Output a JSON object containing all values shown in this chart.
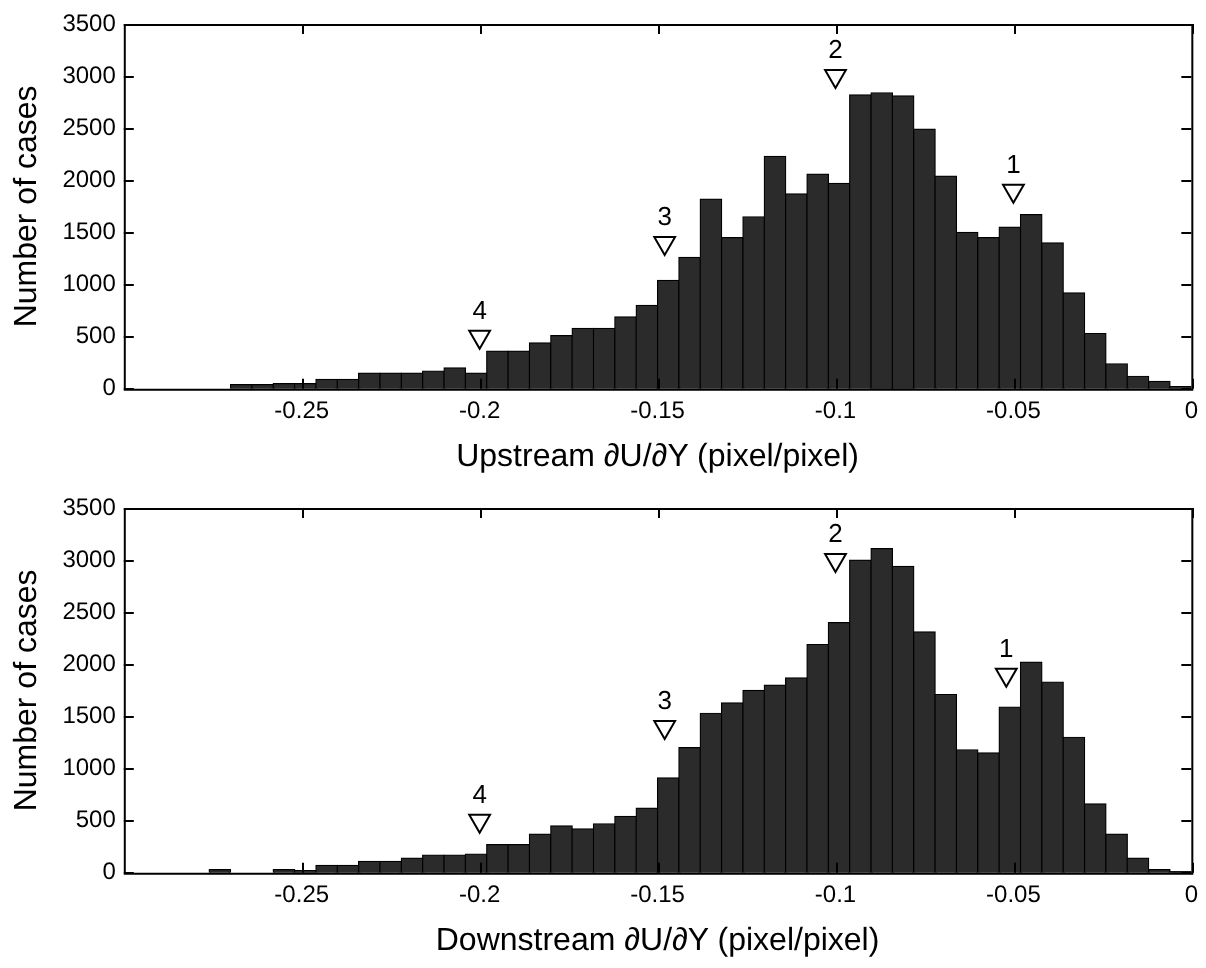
{
  "chart_data": [
    {
      "type": "histogram",
      "xlabel": "Upstream ∂U/∂Y (pixel/pixel)",
      "ylabel": "Number of cases",
      "color": "#2b2b2b",
      "bins": [
        -0.294,
        -0.288,
        -0.282,
        -0.276,
        -0.27,
        -0.264,
        -0.258,
        -0.252,
        -0.246,
        -0.24,
        -0.234,
        -0.228,
        -0.222,
        -0.216,
        -0.21,
        -0.204,
        -0.198,
        -0.192,
        -0.186,
        -0.18,
        -0.174,
        -0.168,
        -0.162,
        -0.156,
        -0.15,
        -0.144,
        -0.138,
        -0.132,
        -0.126,
        -0.12,
        -0.114,
        -0.108,
        -0.102,
        -0.096,
        -0.09,
        -0.084,
        -0.078,
        -0.072,
        -0.066,
        -0.06,
        -0.054,
        -0.048,
        -0.042,
        -0.036,
        -0.03,
        -0.024,
        -0.018,
        -0.012,
        -0.006,
        0
      ],
      "values": [
        0,
        0,
        0,
        0,
        40,
        40,
        50,
        50,
        90,
        90,
        150,
        150,
        150,
        170,
        200,
        150,
        360,
        360,
        440,
        510,
        580,
        580,
        690,
        800,
        1040,
        1260,
        1820,
        1450,
        1650,
        2230,
        1870,
        2060,
        1970,
        2820,
        2840,
        2810,
        2490,
        2040,
        1500,
        1450,
        1550,
        1670,
        1400,
        920,
        530,
        240,
        120,
        70,
        20
      ],
      "xlim": [
        -0.3,
        0
      ],
      "xticks": [
        -0.25,
        -0.2,
        -0.15,
        -0.1,
        -0.05,
        0
      ],
      "ylim": [
        0,
        3500
      ],
      "yticks": [
        0,
        500,
        1000,
        1500,
        2000,
        2500,
        3000,
        3500
      ],
      "grid": false,
      "series": [
        {
          "type": "scatter",
          "name": "1",
          "x": [
            -0.05
          ],
          "values": [
            1900
          ],
          "color": "#ffffff",
          "marker": "triangle"
        },
        {
          "type": "scatter",
          "name": "2",
          "x": [
            -0.1
          ],
          "values": [
            3000
          ],
          "color": "#ffffff",
          "marker": "triangle"
        },
        {
          "type": "scatter",
          "name": "3",
          "x": [
            -0.148
          ],
          "values": [
            1400
          ],
          "color": "#ffffff",
          "marker": "triangle"
        },
        {
          "type": "scatter",
          "name": "4",
          "x": [
            -0.2
          ],
          "values": [
            500
          ],
          "color": "#ffffff",
          "marker": "triangle"
        }
      ]
    },
    {
      "type": "histogram",
      "xlabel": "Downstream ∂U/∂Y (pixel/pixel)",
      "ylabel": "Number of cases",
      "color": "#2b2b2b",
      "bins": [
        -0.294,
        -0.288,
        -0.282,
        -0.276,
        -0.27,
        -0.264,
        -0.258,
        -0.252,
        -0.246,
        -0.24,
        -0.234,
        -0.228,
        -0.222,
        -0.216,
        -0.21,
        -0.204,
        -0.198,
        -0.192,
        -0.186,
        -0.18,
        -0.174,
        -0.168,
        -0.162,
        -0.156,
        -0.15,
        -0.144,
        -0.138,
        -0.132,
        -0.126,
        -0.12,
        -0.114,
        -0.108,
        -0.102,
        -0.096,
        -0.09,
        -0.084,
        -0.078,
        -0.072,
        -0.066,
        -0.06,
        -0.054,
        -0.048,
        -0.042,
        -0.036,
        -0.03,
        -0.024,
        -0.018,
        -0.012,
        -0.006,
        0
      ],
      "values": [
        0,
        0,
        0,
        30,
        0,
        0,
        30,
        20,
        70,
        70,
        110,
        110,
        140,
        170,
        170,
        180,
        270,
        270,
        370,
        450,
        420,
        470,
        540,
        620,
        910,
        1200,
        1530,
        1630,
        1750,
        1800,
        1870,
        2190,
        2400,
        3000,
        3110,
        2940,
        2310,
        1710,
        1180,
        1150,
        1590,
        2020,
        1830,
        1300,
        660,
        370,
        140,
        30,
        10
      ],
      "xlim": [
        -0.3,
        0
      ],
      "xticks": [
        -0.25,
        -0.2,
        -0.15,
        -0.1,
        -0.05,
        0
      ],
      "ylim": [
        0,
        3500
      ],
      "yticks": [
        0,
        500,
        1000,
        1500,
        2000,
        2500,
        3000,
        3500
      ],
      "grid": false,
      "series": [
        {
          "type": "scatter",
          "name": "1",
          "x": [
            -0.052
          ],
          "values": [
            1900
          ],
          "color": "#ffffff",
          "marker": "triangle"
        },
        {
          "type": "scatter",
          "name": "2",
          "x": [
            -0.1
          ],
          "values": [
            3000
          ],
          "color": "#ffffff",
          "marker": "triangle"
        },
        {
          "type": "scatter",
          "name": "3",
          "x": [
            -0.148
          ],
          "values": [
            1400
          ],
          "color": "#ffffff",
          "marker": "triangle"
        },
        {
          "type": "scatter",
          "name": "4",
          "x": [
            -0.2
          ],
          "values": [
            500
          ],
          "color": "#ffffff",
          "marker": "triangle"
        }
      ]
    }
  ]
}
